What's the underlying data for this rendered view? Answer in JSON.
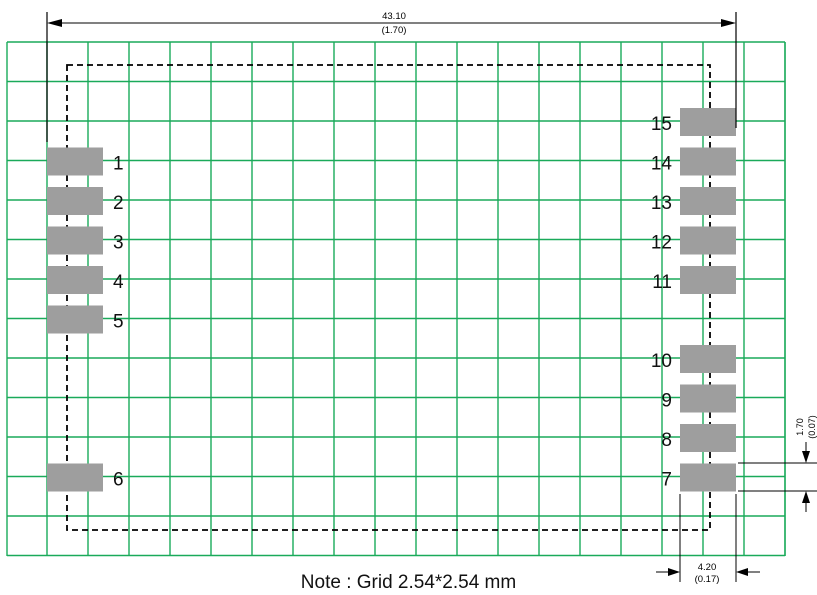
{
  "diagram": {
    "note": "Note : Grid 2.54*2.54 mm",
    "width_dimension": {
      "mm": "43.10",
      "inch": "(1.70)"
    },
    "pad_width_dimension": {
      "mm": "4.20",
      "inch": "(0.17)"
    },
    "pad_height_dimension": {
      "mm": "1.70",
      "inch": "(0.07)"
    },
    "pads_left": [
      "1",
      "2",
      "3",
      "4",
      "5",
      "6"
    ],
    "pads_right": [
      "7",
      "8",
      "9",
      "10",
      "11",
      "12",
      "13",
      "14",
      "15"
    ],
    "colors": {
      "grid": "#1aaa5a",
      "pad": "#9e9e9e",
      "outline": "#000000",
      "dimension": "#000000"
    }
  }
}
